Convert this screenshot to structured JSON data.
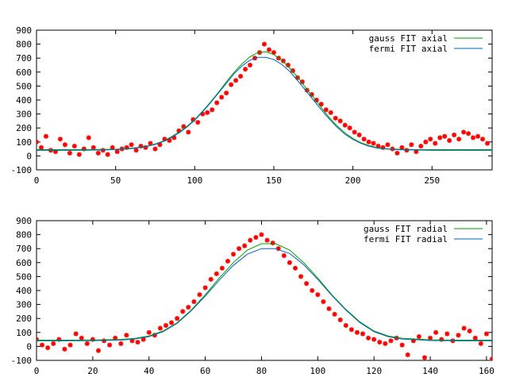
{
  "chart_data": [
    {
      "type": "scatter",
      "title": "",
      "xlabel": "",
      "ylabel": "",
      "xlim": [
        0,
        288
      ],
      "ylim": [
        -100,
        900
      ],
      "xticks": [
        0,
        50,
        100,
        150,
        200,
        250
      ],
      "yticks": [
        -100,
        0,
        100,
        200,
        300,
        400,
        500,
        600,
        700,
        800,
        900
      ],
      "grid": false,
      "legend_position": "top-right",
      "series": [
        {
          "name": "",
          "kind": "points",
          "color": "#ff0000",
          "x": [
            0,
            3,
            6,
            9,
            12,
            15,
            18,
            21,
            24,
            27,
            30,
            33,
            36,
            39,
            42,
            45,
            48,
            51,
            54,
            57,
            60,
            63,
            66,
            69,
            72,
            75,
            78,
            81,
            84,
            87,
            90,
            93,
            96,
            99,
            102,
            105,
            108,
            111,
            114,
            117,
            120,
            123,
            126,
            129,
            132,
            135,
            138,
            141,
            144,
            147,
            150,
            153,
            156,
            159,
            162,
            165,
            168,
            171,
            174,
            177,
            180,
            183,
            186,
            189,
            192,
            195,
            198,
            201,
            204,
            207,
            210,
            213,
            216,
            219,
            222,
            225,
            228,
            231,
            234,
            237,
            240,
            243,
            246,
            249,
            252,
            255,
            258,
            261,
            264,
            267,
            270,
            273,
            276,
            279,
            282,
            285
          ],
          "y": [
            100,
            60,
            140,
            40,
            30,
            120,
            80,
            20,
            70,
            10,
            50,
            130,
            60,
            20,
            40,
            10,
            60,
            30,
            50,
            60,
            80,
            40,
            70,
            60,
            90,
            50,
            80,
            120,
            110,
            130,
            180,
            210,
            170,
            260,
            240,
            300,
            310,
            330,
            380,
            420,
            450,
            510,
            540,
            570,
            620,
            650,
            700,
            740,
            800,
            760,
            740,
            700,
            680,
            650,
            610,
            560,
            530,
            470,
            440,
            400,
            370,
            330,
            310,
            270,
            250,
            220,
            200,
            170,
            150,
            120,
            100,
            90,
            70,
            60,
            80,
            50,
            20,
            60,
            40,
            80,
            30,
            70,
            100,
            120,
            90,
            130,
            140,
            110,
            150,
            120,
            170,
            160,
            130,
            140,
            120,
            90
          ]
        },
        {
          "name": "gauss FIT axial",
          "kind": "line",
          "color": "#00a000",
          "x": [
            0,
            10,
            20,
            30,
            40,
            50,
            60,
            70,
            75,
            80,
            85,
            90,
            95,
            100,
            105,
            110,
            115,
            120,
            125,
            130,
            135,
            140,
            145,
            150,
            155,
            160,
            165,
            170,
            175,
            180,
            185,
            190,
            195,
            200,
            205,
            210,
            215,
            220,
            230,
            240,
            250,
            260,
            270,
            280,
            288
          ],
          "y": [
            45,
            45,
            45,
            45,
            46,
            48,
            55,
            70,
            85,
            105,
            135,
            170,
            210,
            260,
            320,
            385,
            455,
            530,
            600,
            660,
            710,
            740,
            745,
            725,
            685,
            630,
            565,
            490,
            420,
            345,
            275,
            215,
            165,
            125,
            95,
            75,
            60,
            52,
            47,
            45,
            45,
            45,
            45,
            45,
            45
          ]
        },
        {
          "name": "fermi FIT axial",
          "kind": "line",
          "color": "#0060c0",
          "x": [
            0,
            10,
            20,
            30,
            40,
            50,
            60,
            70,
            75,
            80,
            85,
            90,
            95,
            100,
            105,
            110,
            115,
            120,
            125,
            130,
            135,
            140,
            145,
            150,
            155,
            160,
            165,
            170,
            175,
            180,
            185,
            190,
            195,
            200,
            205,
            210,
            215,
            220,
            230,
            240,
            250,
            260,
            270,
            280,
            288
          ],
          "y": [
            40,
            40,
            40,
            41,
            42,
            45,
            52,
            68,
            82,
            102,
            130,
            165,
            205,
            255,
            315,
            380,
            450,
            520,
            590,
            645,
            685,
            705,
            705,
            690,
            655,
            605,
            540,
            470,
            400,
            330,
            265,
            205,
            155,
            118,
            90,
            70,
            57,
            50,
            44,
            42,
            40,
            40,
            40,
            40,
            40
          ]
        }
      ]
    },
    {
      "type": "scatter",
      "title": "",
      "xlabel": "",
      "ylabel": "",
      "xlim": [
        0,
        162
      ],
      "ylim": [
        -100,
        900
      ],
      "xticks": [
        0,
        20,
        40,
        60,
        80,
        100,
        120,
        140,
        160
      ],
      "yticks": [
        -100,
        0,
        100,
        200,
        300,
        400,
        500,
        600,
        700,
        800,
        900
      ],
      "grid": false,
      "legend_position": "top-right",
      "series": [
        {
          "name": "",
          "kind": "points",
          "color": "#ff0000",
          "x": [
            0,
            2,
            4,
            6,
            8,
            10,
            12,
            14,
            16,
            18,
            20,
            22,
            24,
            26,
            28,
            30,
            32,
            34,
            36,
            38,
            40,
            42,
            44,
            46,
            48,
            50,
            52,
            54,
            56,
            58,
            60,
            62,
            64,
            66,
            68,
            70,
            72,
            74,
            76,
            78,
            80,
            82,
            84,
            86,
            88,
            90,
            92,
            94,
            96,
            98,
            100,
            102,
            104,
            106,
            108,
            110,
            112,
            114,
            116,
            118,
            120,
            122,
            124,
            126,
            128,
            130,
            132,
            134,
            136,
            138,
            140,
            142,
            144,
            146,
            148,
            150,
            152,
            154,
            156,
            158,
            160,
            162
          ],
          "y": [
            50,
            10,
            -10,
            20,
            50,
            -20,
            10,
            90,
            60,
            20,
            50,
            -30,
            40,
            10,
            60,
            20,
            80,
            40,
            30,
            50,
            100,
            80,
            130,
            150,
            170,
            200,
            250,
            280,
            320,
            370,
            420,
            480,
            520,
            560,
            610,
            660,
            700,
            720,
            760,
            780,
            800,
            760,
            740,
            700,
            650,
            600,
            560,
            500,
            450,
            400,
            370,
            320,
            270,
            230,
            190,
            150,
            120,
            100,
            90,
            60,
            50,
            30,
            20,
            40,
            60,
            10,
            -60,
            40,
            70,
            -80,
            60,
            100,
            50,
            90,
            40,
            80,
            130,
            110,
            60,
            20,
            90,
            -90
          ]
        },
        {
          "name": "gauss FIT radial",
          "kind": "line",
          "color": "#00a000",
          "x": [
            0,
            10,
            20,
            30,
            35,
            40,
            45,
            50,
            55,
            60,
            65,
            70,
            75,
            80,
            85,
            90,
            95,
            100,
            105,
            110,
            115,
            120,
            125,
            130,
            140,
            150,
            162
          ],
          "y": [
            45,
            45,
            46,
            50,
            58,
            75,
            110,
            170,
            260,
            370,
            490,
            600,
            690,
            735,
            735,
            690,
            600,
            490,
            370,
            265,
            175,
            110,
            75,
            58,
            47,
            45,
            45
          ]
        },
        {
          "name": "fermi FIT radial",
          "kind": "line",
          "color": "#0060c0",
          "x": [
            0,
            10,
            20,
            30,
            35,
            40,
            45,
            50,
            55,
            60,
            65,
            70,
            75,
            80,
            85,
            90,
            95,
            100,
            105,
            110,
            115,
            120,
            125,
            130,
            140,
            150,
            162
          ],
          "y": [
            40,
            40,
            41,
            45,
            53,
            70,
            105,
            165,
            255,
            360,
            475,
            580,
            660,
            700,
            700,
            665,
            585,
            480,
            365,
            260,
            170,
            105,
            70,
            53,
            42,
            40,
            40
          ]
        }
      ]
    }
  ]
}
